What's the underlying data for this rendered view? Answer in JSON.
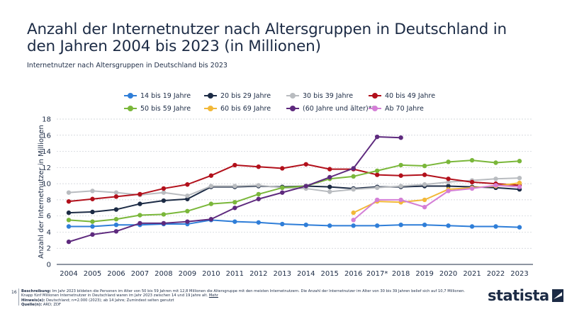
{
  "title": "Anzahl der Internetnutzer nach Altersgruppen in Deutschland in den Jahren 2004 bis 2023 (in Millionen)",
  "subtitle": "Internetnutzer nach Altersgruppen in Deutschland bis 2023",
  "page_number": "16",
  "footer": {
    "description_label": "Beschreibung:",
    "description": "Im Jahr 2023 bildeten die Personen im Alter von 50 bis 59 Jahren mit 12,8 Millionen die Altersgruppe mit den meisten Internetnutzern. Die Anzahl der Internetnutzer im Alter von 30 bis 39 Jahren belief sich auf 10,7 Millionen. Knapp fünf Millionen Internetnutzer in Deutschland waren im Jahr 2023 zwischen 14 und 19 Jahre alt.",
    "more_link": "Mehr",
    "note_label": "Hinweis(e):",
    "note": "Deutschland; n=2.000 (2023); ab 14 Jahre; Zumindest selten genutzt",
    "source_label": "Quelle(n):",
    "source": "ARD; ZDF"
  },
  "logo": "statista",
  "chart_data": {
    "type": "line",
    "ylabel": "Anzahl der Internetnutzer in Millionen",
    "xlabel": "",
    "ylim": [
      0,
      18
    ],
    "yticks": [
      0,
      2,
      4,
      6,
      8,
      10,
      12,
      14,
      16,
      18
    ],
    "grid": true,
    "legend_position": "top-center",
    "categories": [
      "2004",
      "2005",
      "2006",
      "2007",
      "2008",
      "2009",
      "2010",
      "2011",
      "2012",
      "2013",
      "2014",
      "2015",
      "2016",
      "2017*",
      "2018",
      "2019",
      "2020",
      "2021",
      "2022",
      "2023"
    ],
    "series": [
      {
        "name": "14 bis 19 Jahre",
        "color": "#2f7ed8",
        "values": [
          4.7,
          4.7,
          4.9,
          4.9,
          5.0,
          5.0,
          5.5,
          5.3,
          5.2,
          5.0,
          4.9,
          4.8,
          4.8,
          4.8,
          4.9,
          4.9,
          4.8,
          4.7,
          4.7,
          4.6
        ]
      },
      {
        "name": "20 bis 29 Jahre",
        "color": "#1c2b45",
        "values": [
          6.4,
          6.5,
          6.8,
          7.5,
          7.9,
          8.1,
          9.6,
          9.6,
          9.7,
          9.6,
          9.7,
          9.6,
          9.4,
          9.6,
          9.6,
          9.7,
          9.7,
          9.6,
          9.5,
          9.3
        ]
      },
      {
        "name": "30 bis 39 Jahre",
        "color": "#b9bcc0",
        "values": [
          8.9,
          9.1,
          8.9,
          8.6,
          8.9,
          8.5,
          9.7,
          9.7,
          9.8,
          9.5,
          9.4,
          9.0,
          9.3,
          9.5,
          9.7,
          9.9,
          10.2,
          10.4,
          10.6,
          10.7
        ]
      },
      {
        "name": "40 bis 49 Jahre",
        "color": "#b2101b",
        "values": [
          7.8,
          8.1,
          8.4,
          8.7,
          9.4,
          9.9,
          11.0,
          12.3,
          12.1,
          11.9,
          12.4,
          11.8,
          11.8,
          11.1,
          11.0,
          11.1,
          10.6,
          10.2,
          10.0,
          9.8
        ]
      },
      {
        "name": "50 bis 59 Jahre",
        "color": "#7ab73a",
        "values": [
          5.5,
          5.3,
          5.6,
          6.1,
          6.2,
          6.6,
          7.5,
          7.7,
          8.7,
          9.5,
          9.7,
          10.6,
          10.9,
          11.6,
          12.3,
          12.2,
          12.7,
          12.9,
          12.6,
          12.8
        ]
      },
      {
        "name": "60 bis 69 Jahre",
        "color": "#f2b838",
        "values": [
          null,
          null,
          null,
          null,
          null,
          null,
          null,
          null,
          null,
          null,
          null,
          null,
          6.4,
          7.8,
          7.7,
          8.0,
          9.3,
          9.5,
          9.7,
          10.1
        ]
      },
      {
        "name": "(60 Jahre und älter)**",
        "color": "#5e2a7e",
        "values": [
          2.8,
          3.7,
          4.1,
          5.1,
          5.1,
          5.3,
          5.6,
          7.0,
          8.1,
          8.9,
          9.7,
          10.8,
          11.9,
          15.8,
          15.7,
          null,
          null,
          null,
          null,
          null
        ]
      },
      {
        "name": "Ab 70 Jahre",
        "color": "#d47fd6",
        "values": [
          null,
          null,
          null,
          null,
          null,
          null,
          null,
          null,
          null,
          null,
          null,
          null,
          5.5,
          8.0,
          8.0,
          7.1,
          9.1,
          9.4,
          9.8,
          9.6
        ]
      }
    ]
  }
}
